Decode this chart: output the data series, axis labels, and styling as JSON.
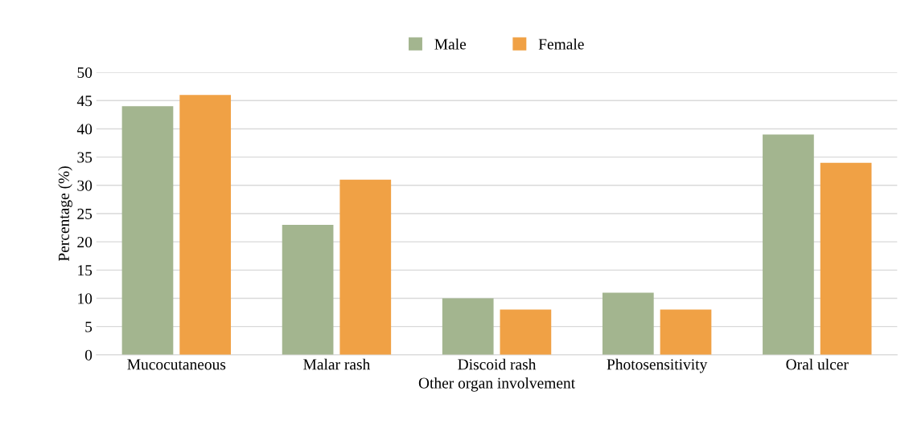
{
  "chart_data": {
    "type": "bar",
    "xlabel": "Other organ involvement",
    "ylabel": "Percentage (%)",
    "categories": [
      "Mucocutaneous",
      "Malar rash",
      "Discoid rash",
      "Photosensitivity",
      "Oral ulcer"
    ],
    "series": [
      {
        "name": "Male",
        "color": "#a3b58f",
        "values": [
          44,
          23,
          10,
          11,
          39
        ]
      },
      {
        "name": "Female",
        "color": "#f0a145",
        "values": [
          46,
          31,
          8,
          8,
          34
        ]
      }
    ],
    "ylim": [
      0,
      50
    ],
    "yticks": [
      0,
      5,
      10,
      15,
      20,
      25,
      30,
      35,
      40,
      45,
      50
    ],
    "grid": "y",
    "legend": "top"
  }
}
